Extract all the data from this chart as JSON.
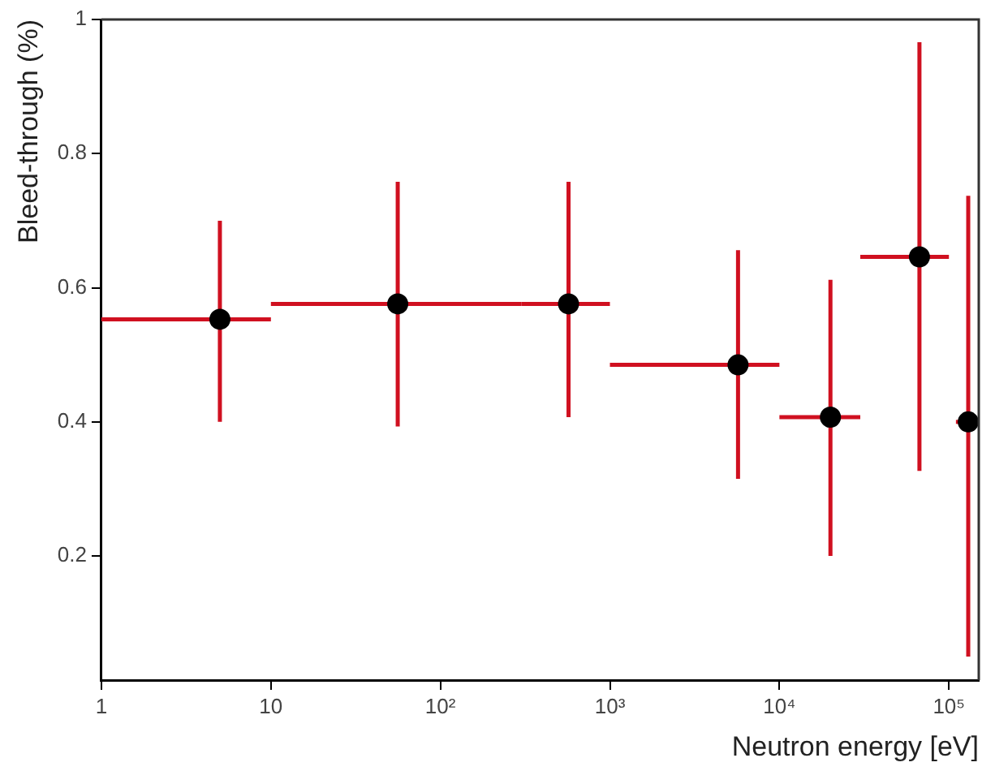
{
  "chart_data": {
    "type": "scatter",
    "xlabel": "Neutron energy [eV]",
    "ylabel": "Bleed-through (%)",
    "log": "x",
    "grid": false,
    "legend": false,
    "marker": "circle",
    "xlim": [
      1,
      150000
    ],
    "xticks": [
      1,
      10,
      {
        "value": 100,
        "label": "10²"
      },
      {
        "value": 1000,
        "label": "10³"
      },
      {
        "value": 10000,
        "label": "10⁴"
      },
      {
        "value": 100000,
        "label": "10⁵"
      }
    ],
    "ylim": [
      0.015,
      1
    ],
    "yticks": [
      0.2,
      0.4,
      0.6,
      0.8,
      1
    ],
    "series": [
      {
        "color": "#000000",
        "x": [
          5,
          56,
          570,
          5700,
          20000,
          67000,
          130000
        ],
        "values": [
          0.553,
          0.576,
          0.576,
          0.485,
          0.407,
          0.646,
          0.4
        ],
        "errors": [
          [
            0.4,
            0.7
          ],
          [
            0.393,
            0.758
          ],
          [
            0.407,
            0.758
          ],
          [
            0.315,
            0.656
          ],
          [
            0.2,
            0.612
          ],
          [
            0.327,
            0.966
          ],
          [
            0.05,
            0.737
          ]
        ],
        "xerrors": [
          [
            1,
            10
          ],
          [
            10,
            300
          ],
          [
            300,
            1000
          ],
          [
            1000,
            10000
          ],
          [
            10000,
            30000
          ],
          [
            30000,
            100000
          ],
          [
            110000,
            150000
          ]
        ]
      }
    ]
  }
}
